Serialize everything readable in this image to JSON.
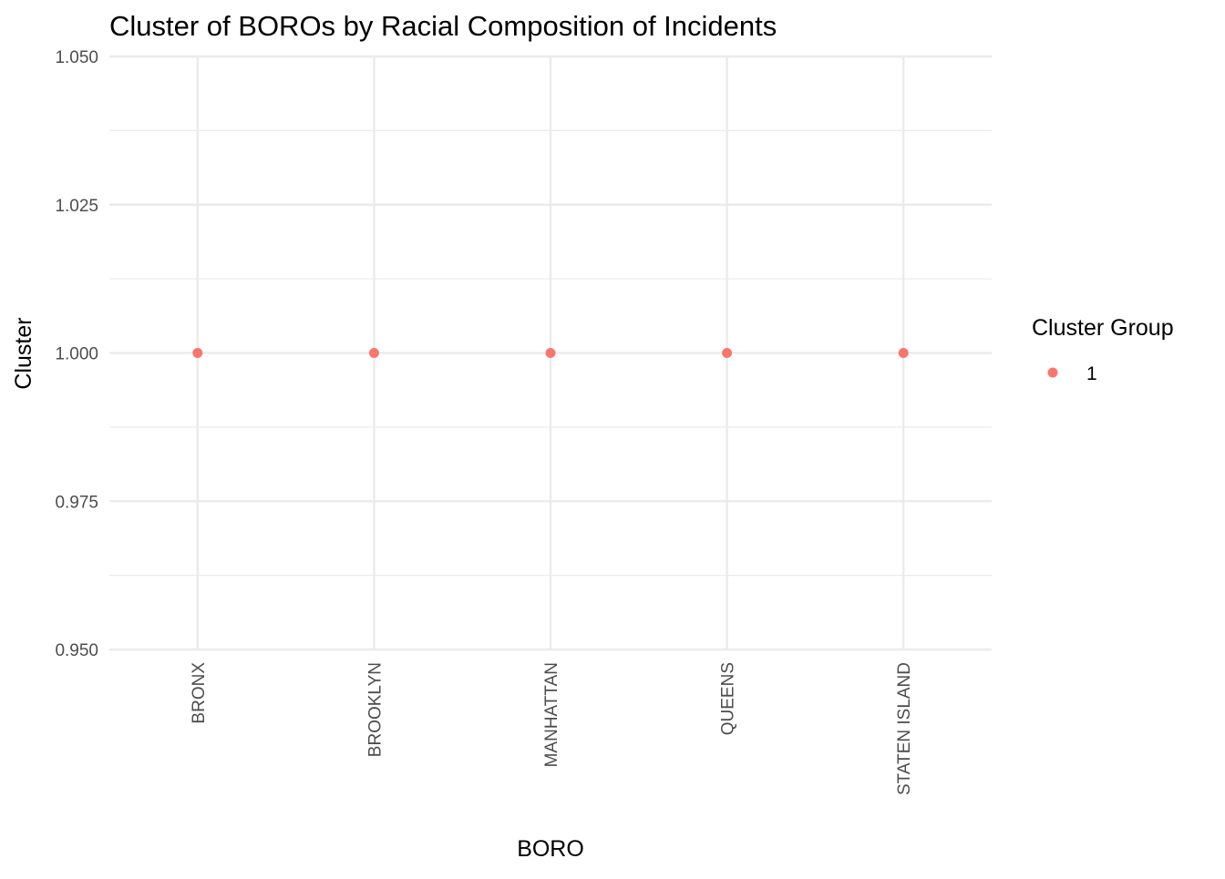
{
  "chart_data": {
    "type": "scatter",
    "title": "Cluster of BOROs by Racial Composition of Incidents",
    "xlabel": "BORO",
    "ylabel": "Cluster",
    "categories": [
      "BRONX",
      "BROOKLYN",
      "MANHATTAN",
      "QUEENS",
      "STATEN ISLAND"
    ],
    "series": [
      {
        "name": "1",
        "values": [
          1.0,
          1.0,
          1.0,
          1.0,
          1.0
        ],
        "color": "#f8766d"
      }
    ],
    "ylim": [
      0.95,
      1.05
    ],
    "y_ticks": [
      "0.950",
      "0.975",
      "1.000",
      "1.025",
      "1.050"
    ],
    "grid": true,
    "legend": {
      "title": "Cluster Group",
      "position": "right"
    }
  }
}
